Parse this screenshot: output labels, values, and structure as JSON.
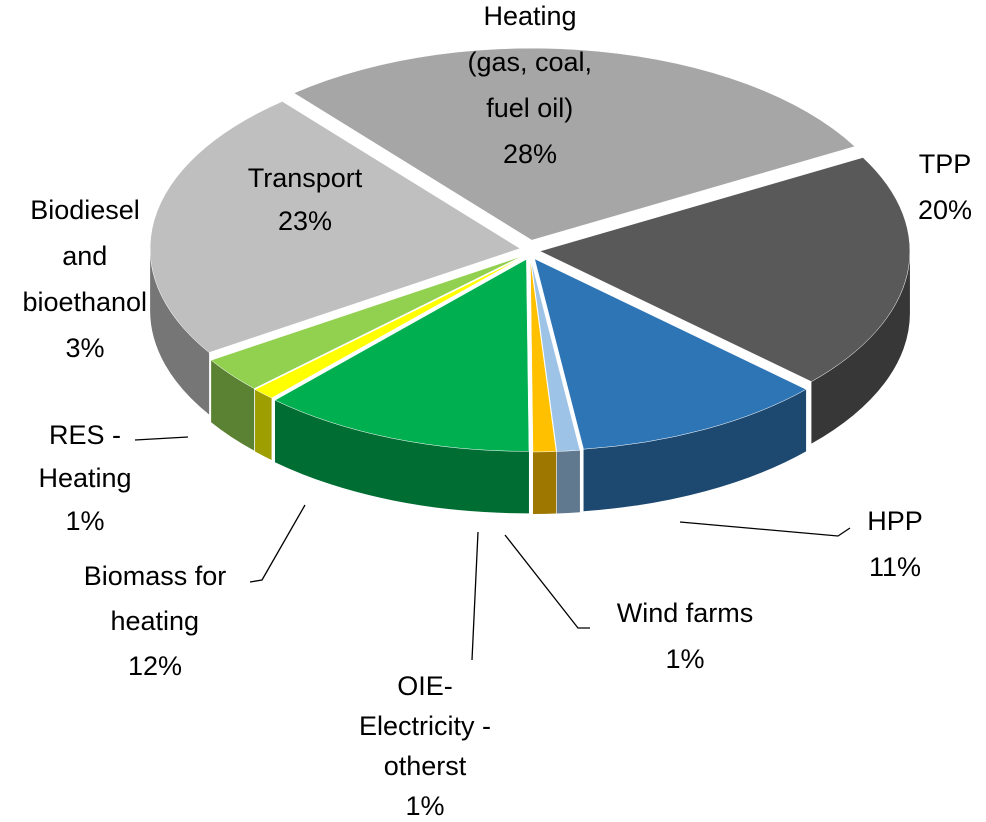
{
  "chart_data": {
    "type": "pie",
    "categories": [
      "Heating (gas, coal, fuel oil)",
      "TPP",
      "HPP",
      "Wind farms",
      "OIE-Electricity - otherst",
      "Biomass for heating",
      "RES - Heating",
      "Biodiesel and bioethanol",
      "Transport"
    ],
    "values": [
      28,
      20,
      11,
      1,
      1,
      12,
      1,
      3,
      23
    ],
    "value_labels": [
      "28%",
      "20%",
      "11%",
      "1%",
      "1%",
      "12%",
      "1%",
      "3%",
      "23%"
    ],
    "colors": [
      "#a6a6a6",
      "#595959",
      "#2e75b6",
      "#9dc3e6",
      "#ffc000",
      "#00b050",
      "#ffff00",
      "#92d050",
      "#bfbfbf"
    ]
  }
}
